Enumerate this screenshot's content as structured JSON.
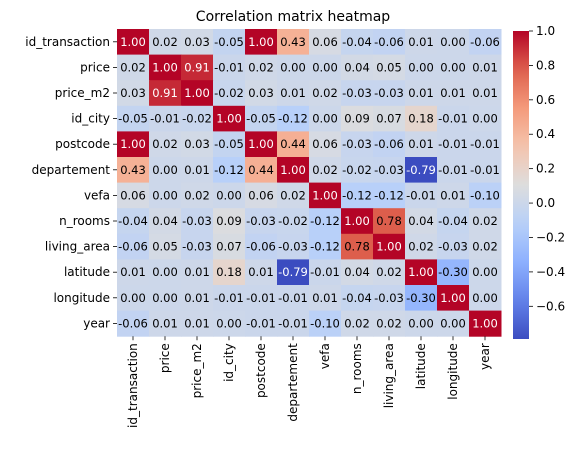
{
  "chart_data": {
    "type": "heatmap",
    "title": "Correlation matrix heatmap",
    "xlabel": "",
    "ylabel": "",
    "rows": [
      "id_transaction",
      "price",
      "price_m2",
      "id_city",
      "postcode",
      "departement",
      "vefa",
      "n_rooms",
      "living_area",
      "latitude",
      "longitude",
      "year"
    ],
    "columns": [
      "id_transaction",
      "price",
      "price_m2",
      "id_city",
      "postcode",
      "departement",
      "vefa",
      "n_rooms",
      "living_area",
      "latitude",
      "longitude",
      "year"
    ],
    "values": [
      [
        1.0,
        0.02,
        0.03,
        -0.05,
        1.0,
        0.43,
        0.06,
        -0.04,
        -0.06,
        0.01,
        0.0,
        -0.06
      ],
      [
        0.02,
        1.0,
        0.91,
        -0.01,
        0.02,
        0.0,
        0.0,
        0.04,
        0.05,
        0.0,
        0.0,
        0.01
      ],
      [
        0.03,
        0.91,
        1.0,
        -0.02,
        0.03,
        0.01,
        0.02,
        -0.03,
        -0.03,
        0.01,
        0.01,
        0.01
      ],
      [
        -0.05,
        -0.01,
        -0.02,
        1.0,
        -0.05,
        -0.12,
        -0.0,
        0.09,
        0.07,
        0.18,
        -0.01,
        0.0
      ],
      [
        1.0,
        0.02,
        0.03,
        -0.05,
        1.0,
        0.44,
        0.06,
        -0.03,
        -0.06,
        0.01,
        -0.01,
        -0.01
      ],
      [
        0.43,
        0.0,
        0.01,
        -0.12,
        0.44,
        1.0,
        0.02,
        -0.02,
        -0.03,
        -0.79,
        -0.01,
        -0.01
      ],
      [
        0.06,
        0.0,
        0.02,
        -0.0,
        0.06,
        0.02,
        1.0,
        -0.12,
        -0.12,
        -0.01,
        0.01,
        -0.1
      ],
      [
        -0.04,
        0.04,
        -0.03,
        0.09,
        -0.03,
        -0.02,
        -0.12,
        1.0,
        0.78,
        0.04,
        -0.04,
        0.02
      ],
      [
        -0.06,
        0.05,
        -0.03,
        0.07,
        -0.06,
        -0.03,
        -0.12,
        0.78,
        1.0,
        0.02,
        -0.03,
        0.02
      ],
      [
        0.01,
        0.0,
        0.01,
        0.18,
        0.01,
        -0.79,
        -0.01,
        0.04,
        0.02,
        1.0,
        -0.3,
        0.0
      ],
      [
        0.0,
        0.0,
        0.01,
        -0.01,
        -0.01,
        -0.01,
        0.01,
        -0.04,
        -0.03,
        -0.3,
        1.0,
        0.0
      ],
      [
        -0.06,
        0.01,
        0.01,
        0.0,
        -0.01,
        -0.01,
        -0.1,
        0.02,
        0.02,
        0.0,
        0.0,
        1.0
      ]
    ],
    "colormap": "coolwarm",
    "vmin": -0.79,
    "vmax": 1.0,
    "colorbar_ticks": [
      -0.6,
      -0.4,
      -0.2,
      0.0,
      0.2,
      0.4,
      0.6,
      0.8,
      1.0
    ],
    "colorbar_tick_labels": [
      "−0.6",
      "−0.4",
      "−0.2",
      "0.0",
      "0.2",
      "0.4",
      "0.6",
      "0.8",
      "1.0"
    ],
    "annotation_format": "2 decimals"
  }
}
